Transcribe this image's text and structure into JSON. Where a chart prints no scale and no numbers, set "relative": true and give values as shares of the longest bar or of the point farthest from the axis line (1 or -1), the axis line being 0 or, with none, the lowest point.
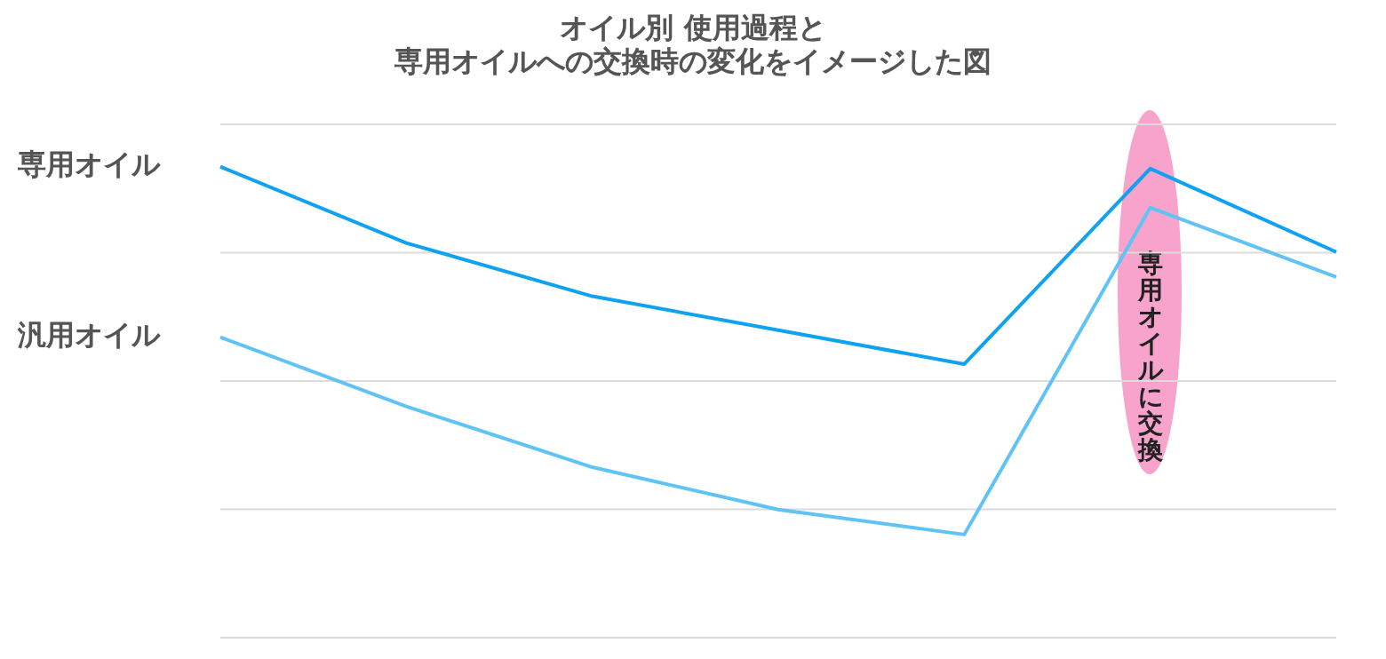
{
  "chart_data": {
    "type": "line",
    "title": "オイル別 使用過程と",
    "subtitle": "専用オイルへの交換時の変化をイメージした図",
    "relative": true,
    "grid": "y",
    "marker": "none",
    "line_style": "solid",
    "legend": false,
    "categories": [
      null,
      null,
      null,
      null,
      null,
      null,
      null
    ],
    "series": [
      {
        "name": "専用オイル",
        "color": "#0ea2f0",
        "values": [
          1,
          0.838,
          0.725,
          0.653,
          0.581,
          0.996,
          0.819
        ]
      },
      {
        "name": "汎用オイル",
        "color": "#5fc3f6",
        "values": [
          0.638,
          0.491,
          0.362,
          0.272,
          0.219,
          0.913,
          0.766
        ]
      }
    ],
    "annotations": [
      "専用オイルに交換"
    ]
  }
}
